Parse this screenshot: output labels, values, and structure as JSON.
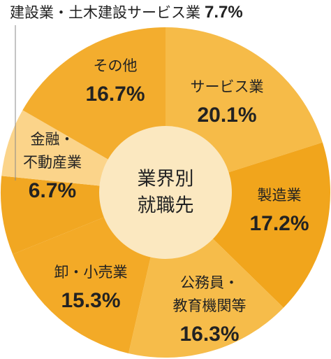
{
  "chart_data": {
    "type": "donut",
    "center_lines": [
      "業界別",
      "就職先"
    ],
    "categories": [
      [
        "サービス業"
      ],
      [
        "製造業"
      ],
      [
        "公務員・",
        "教育機関等"
      ],
      [
        "卸・小売業"
      ],
      [
        "建設業・土木建設サービス業"
      ],
      [
        "金融・",
        "不動産業"
      ],
      [
        "その他"
      ]
    ],
    "values": [
      20.1,
      17.2,
      16.3,
      15.3,
      7.7,
      6.7,
      16.7
    ],
    "value_labels": [
      "20.1%",
      "17.2%",
      "16.3%",
      "15.3%",
      "7.7%",
      "6.7%",
      "16.7%"
    ],
    "colors": [
      "#f6bb48",
      "#f1a51c",
      "#f6bc4a",
      "#f3aa27",
      "#f1a722",
      "#fbd48a",
      "#f3ad2e"
    ]
  }
}
